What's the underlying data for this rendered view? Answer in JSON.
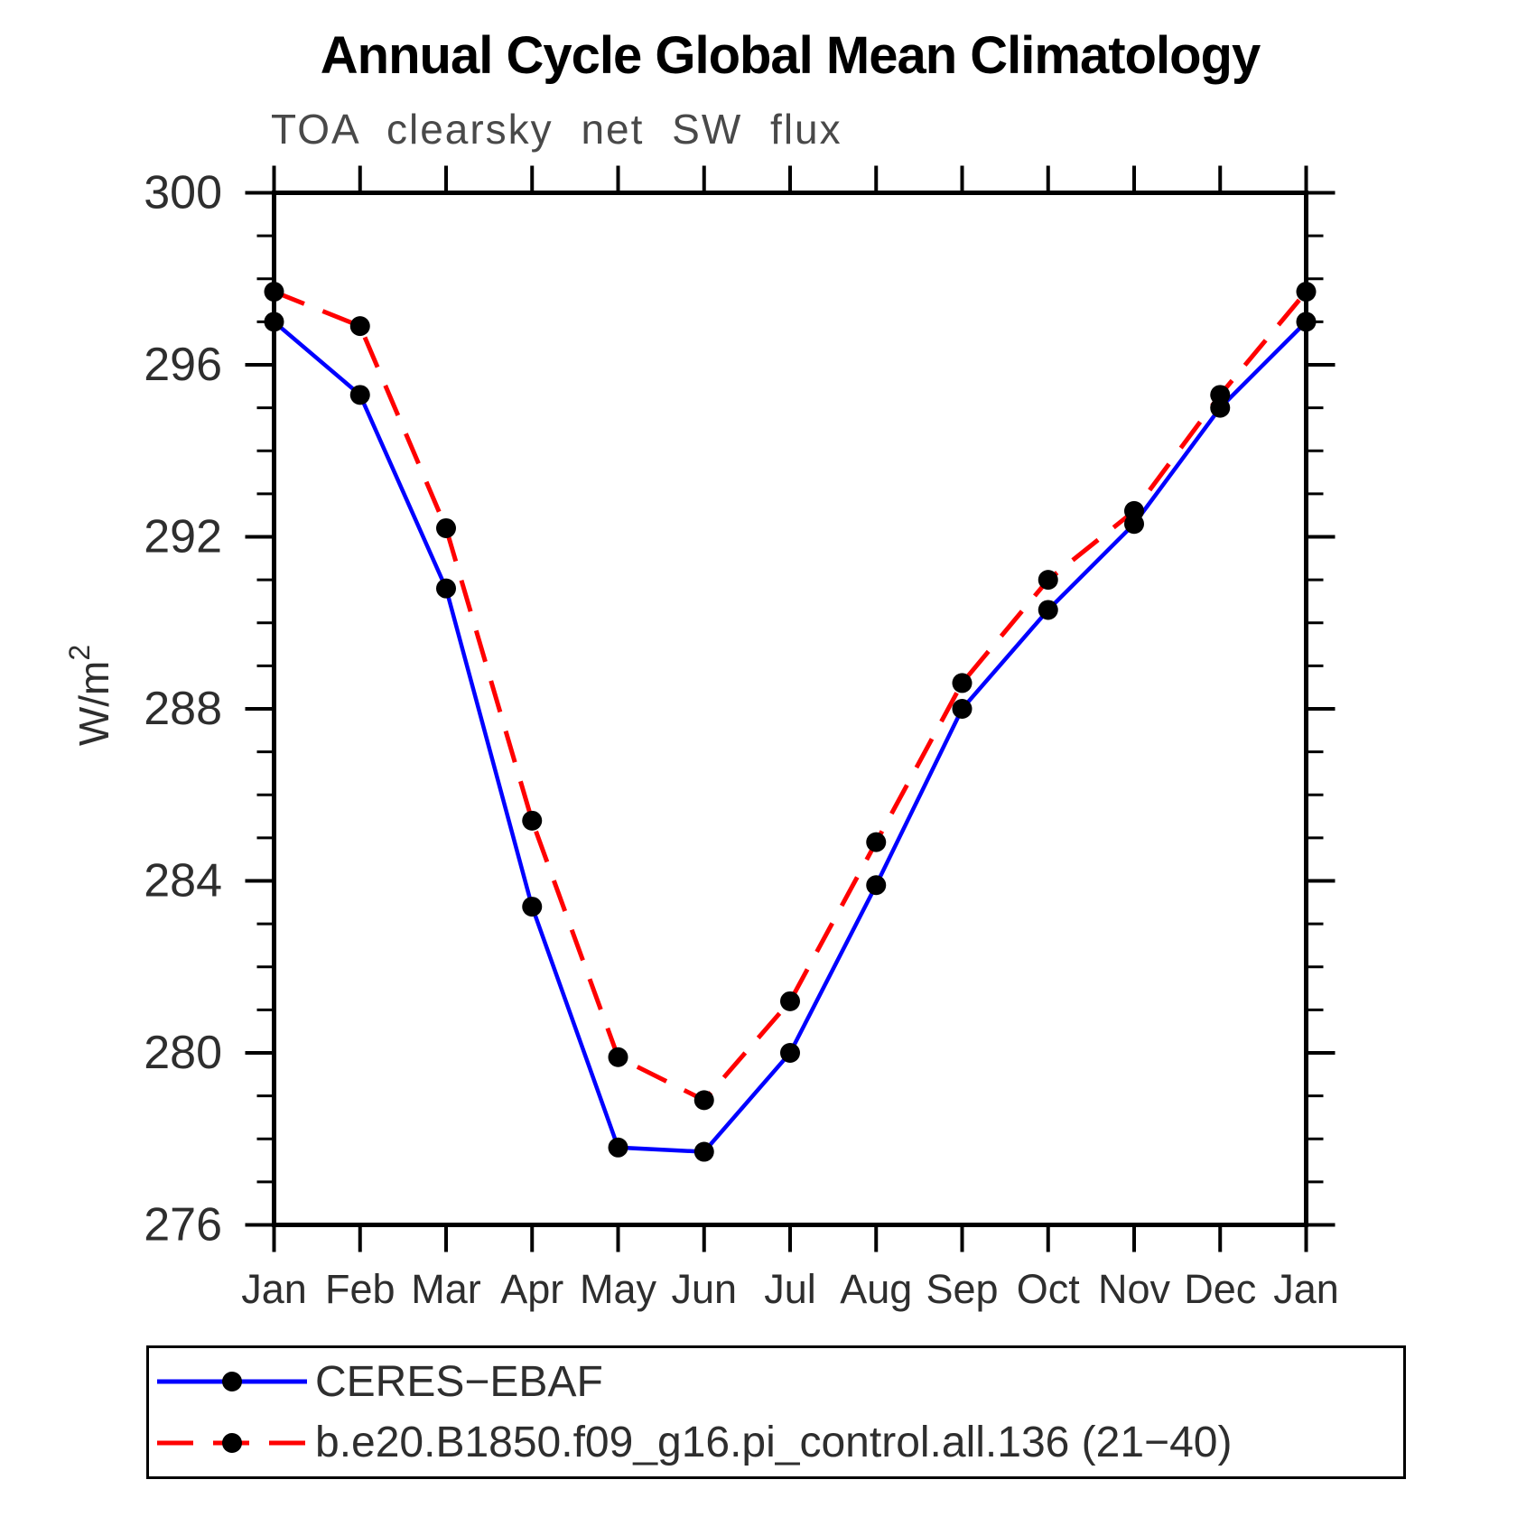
{
  "header": {
    "title": "Annual Cycle Global Mean Climatology",
    "subtitle": "TOA clearsky net SW flux"
  },
  "axes": {
    "y_unit_label": "W/m²",
    "y_tick_labels": [
      "276",
      "280",
      "284",
      "288",
      "292",
      "296",
      "300"
    ]
  },
  "chart_data": {
    "type": "line",
    "title": "Annual Cycle Global Mean Climatology",
    "subtitle": "TOA clearsky net SW flux",
    "xlabel": "",
    "ylabel": "W/m²",
    "ylim": [
      276,
      300
    ],
    "yticks_major": [
      276,
      280,
      284,
      288,
      292,
      296,
      300
    ],
    "ytick_minor_step": 1,
    "grid": false,
    "legend_position": "bottom-left box",
    "categories": [
      "Jan",
      "Feb",
      "Mar",
      "Apr",
      "May",
      "Jun",
      "Jul",
      "Aug",
      "Sep",
      "Oct",
      "Nov",
      "Dec",
      "Jan"
    ],
    "series": [
      {
        "name": "CERES−EBAF",
        "color": "#0000ff",
        "line_style": "solid",
        "marker": "filled-circle",
        "marker_color": "#000000",
        "values": [
          297.0,
          295.3,
          290.8,
          283.4,
          277.8,
          277.7,
          280.0,
          283.9,
          288.0,
          290.3,
          292.3,
          295.0,
          297.0
        ]
      },
      {
        "name": "b.e20.B1850.f09_g16.pi_control.all.136 (21−40)",
        "color": "#ff0000",
        "line_style": "dashed",
        "marker": "filled-circle",
        "marker_color": "#000000",
        "values": [
          297.7,
          296.9,
          292.2,
          285.4,
          279.9,
          278.9,
          281.2,
          284.9,
          288.6,
          291.0,
          292.6,
          295.3,
          297.7
        ]
      }
    ]
  }
}
